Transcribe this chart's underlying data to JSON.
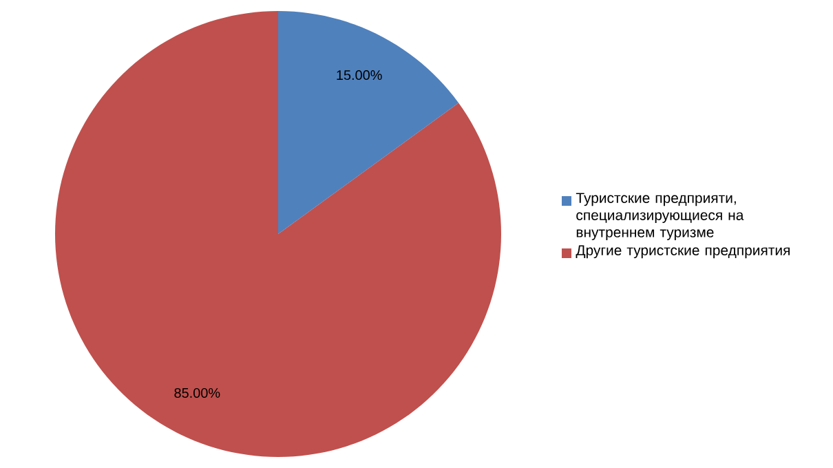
{
  "chart_data": {
    "type": "pie",
    "categories": [
      "Туристские предприяти, специализирующиеся на внутреннем туризме",
      "Другие туристские предприятия"
    ],
    "values": [
      15.0,
      85.0
    ],
    "colors": [
      "#4f81bd",
      "#c0504d"
    ],
    "value_labels": [
      "15.00%",
      "85.00%"
    ],
    "legend": "right"
  }
}
